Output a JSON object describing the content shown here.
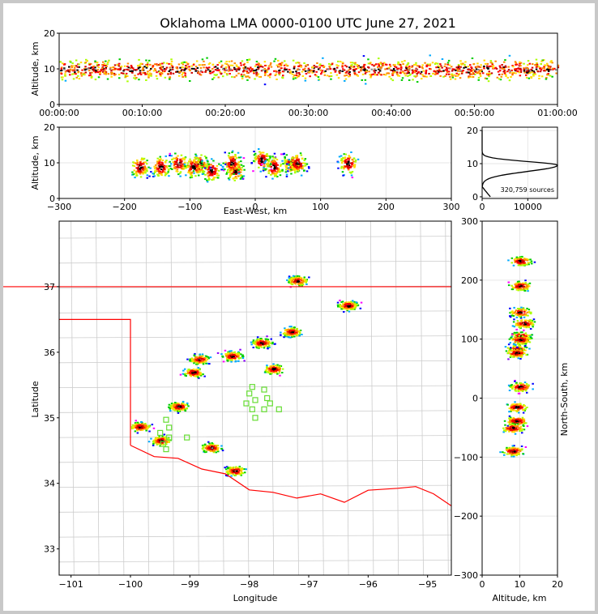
{
  "chart_data": {
    "type": "scatter",
    "title": "Oklahoma LMA 0000-0100 UTC June 27, 2021",
    "source_count_label": "320,759 sources",
    "panels": {
      "time_height": {
        "xlabel": "",
        "ylabel": "Altitude, km",
        "x_ticks": [
          "00:00:00",
          "00:10:00",
          "00:20:00",
          "00:30:00",
          "00:40:00",
          "00:50:00",
          "01:00:00"
        ],
        "x_range_min": [
          0,
          60
        ],
        "ylim": [
          0,
          20
        ],
        "y_ticks": [
          0,
          10,
          20
        ],
        "core_altitude_km": [
          8,
          12
        ]
      },
      "ew_height": {
        "xlabel": "East-West, km",
        "ylabel": "Altitude, km",
        "xlim": [
          -300,
          300
        ],
        "x_ticks": [
          -300,
          -200,
          -100,
          0,
          100,
          200,
          300
        ],
        "ylim": [
          0,
          20
        ],
        "y_ticks": [
          0,
          10,
          20
        ]
      },
      "histogram": {
        "type": "line",
        "xlim": [
          0,
          16500
        ],
        "x_ticks": [
          0,
          10000
        ],
        "ylim": [
          -0.5,
          21
        ],
        "y_ticks": [
          0,
          10,
          20
        ],
        "peak_count": 16500,
        "peak_altitude_km": 9.5
      },
      "plan_view": {
        "xlabel": "Longitude",
        "ylabel": "Latitude",
        "xlim": [
          -101.2,
          -94.6
        ],
        "x_ticks": [
          -101,
          -100,
          -99,
          -98,
          -97,
          -96,
          -95
        ],
        "ylim": [
          32.6,
          38.0
        ],
        "y_ticks": [
          33,
          34,
          35,
          36,
          37
        ]
      },
      "ns_height": {
        "xlabel": "Altitude, km",
        "ylabel": "North-South, km",
        "xlim": [
          0,
          20
        ],
        "x_ticks": [
          0,
          10,
          20
        ],
        "ylim": [
          -300,
          300
        ],
        "y_ticks": [
          -300,
          -200,
          -100,
          0,
          100,
          200,
          300
        ]
      }
    },
    "storm_cells": [
      {
        "lon": -99.85,
        "lat": 34.87,
        "alt": 9
      },
      {
        "lon": -99.2,
        "lat": 35.18,
        "alt": 10
      },
      {
        "lon": -99.5,
        "lat": 34.66,
        "alt": 9
      },
      {
        "lon": -98.65,
        "lat": 34.55,
        "alt": 8
      },
      {
        "lon": -98.25,
        "lat": 34.2,
        "alt": 8
      },
      {
        "lon": -98.3,
        "lat": 35.95,
        "alt": 10
      },
      {
        "lon": -97.8,
        "lat": 36.15,
        "alt": 11
      },
      {
        "lon": -97.6,
        "lat": 35.75,
        "alt": 9
      },
      {
        "lon": -98.85,
        "lat": 35.9,
        "alt": 10
      },
      {
        "lon": -98.95,
        "lat": 35.7,
        "alt": 9
      },
      {
        "lon": -97.3,
        "lat": 36.32,
        "alt": 10
      },
      {
        "lon": -96.35,
        "lat": 36.72,
        "alt": 10
      },
      {
        "lon": -97.2,
        "lat": 37.1,
        "alt": 10
      }
    ],
    "stations": [
      [
        -97.95,
        35.47
      ],
      [
        -98.0,
        35.37
      ],
      [
        -97.9,
        35.27
      ],
      [
        -98.05,
        35.22
      ],
      [
        -97.75,
        35.43
      ],
      [
        -97.65,
        35.22
      ],
      [
        -97.5,
        35.13
      ],
      [
        -97.75,
        35.13
      ],
      [
        -97.95,
        35.13
      ],
      [
        -97.9,
        35.0
      ],
      [
        -99.4,
        34.97
      ],
      [
        -99.35,
        34.85
      ],
      [
        -99.5,
        34.77
      ],
      [
        -99.35,
        34.7
      ],
      [
        -99.05,
        34.7
      ],
      [
        -99.45,
        34.6
      ],
      [
        -99.4,
        34.52
      ],
      [
        -97.7,
        35.3
      ]
    ]
  }
}
